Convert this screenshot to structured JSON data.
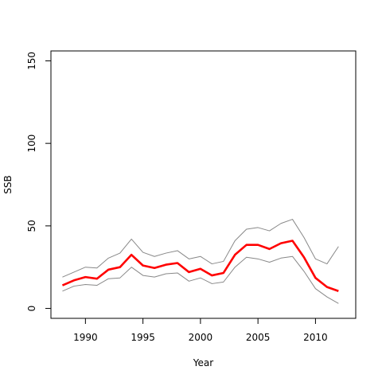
{
  "chart_data": {
    "type": "line",
    "xlabel": "Year",
    "ylabel": "SSB",
    "xlim": [
      1987,
      2013.5
    ],
    "ylim": [
      -6,
      156
    ],
    "x_ticks": [
      1990,
      1995,
      2000,
      2005,
      2010
    ],
    "y_ticks": [
      0,
      50,
      100,
      150
    ],
    "grid": false,
    "x": [
      1988,
      1989,
      1990,
      1991,
      1992,
      1993,
      1994,
      1995,
      1996,
      1997,
      1998,
      1999,
      2000,
      2001,
      2002,
      2003,
      2004,
      2005,
      2006,
      2007,
      2008,
      2009,
      2010,
      2011,
      2012
    ],
    "series": [
      {
        "color": "#ff0000",
        "style": "solid",
        "values": [
          14,
          17,
          19,
          18,
          23.5,
          25,
          32.5,
          26,
          24.5,
          26.5,
          27.5,
          22,
          24,
          20,
          21.5,
          32.5,
          38.5,
          38.5,
          36,
          39.5,
          41,
          31,
          18.5,
          13,
          10.5
        ]
      },
      {
        "color": "#888888",
        "style": "thin",
        "values": [
          19,
          22,
          25,
          24.5,
          30.5,
          33.5,
          42,
          34,
          31.5,
          33.5,
          35,
          30,
          31.5,
          27,
          28.5,
          41,
          48,
          49,
          47,
          51.5,
          54,
          43,
          30,
          27,
          37.5
        ]
      },
      {
        "color": "#888888",
        "style": "thin",
        "values": [
          10.5,
          13.5,
          14.5,
          14,
          18,
          18.5,
          25,
          20,
          19,
          21,
          21.5,
          16.5,
          18.5,
          15,
          16,
          25,
          31,
          30,
          28,
          30.5,
          31.5,
          22.5,
          12,
          7,
          3
        ]
      }
    ]
  }
}
